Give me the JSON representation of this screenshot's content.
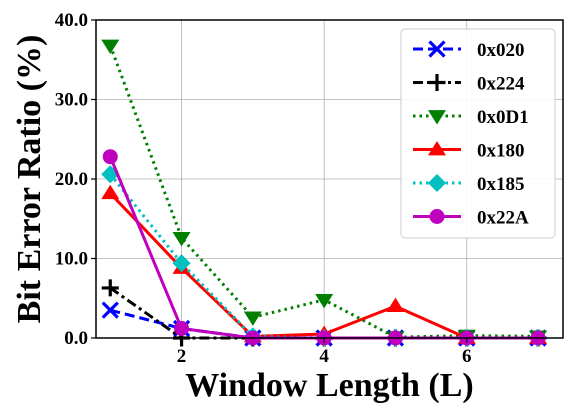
{
  "chart_data": {
    "type": "line",
    "xlabel": "Window Length (L)",
    "ylabel": "Bit Error Ratio (%)",
    "xlim": [
      0.8,
      7.35
    ],
    "ylim": [
      0,
      40
    ],
    "xticks": [
      2,
      4,
      6
    ],
    "xtick_labels": [
      "2",
      "4",
      "6"
    ],
    "yticks": [
      0,
      10,
      20,
      30,
      40
    ],
    "ytick_labels": [
      "0.0",
      "10.0",
      "20.0",
      "30.0",
      "40.0"
    ],
    "grid": true,
    "legend_position": "top-right",
    "series": [
      {
        "name": "0x020",
        "color": "#0000ff",
        "marker": "x",
        "linestyle": "dashed",
        "x": [
          1,
          2,
          3,
          4,
          5,
          6,
          7
        ],
        "y": [
          3.5,
          1.2,
          0.0,
          0.0,
          0.0,
          0.0,
          0.0
        ]
      },
      {
        "name": "0x224",
        "color": "#000000",
        "marker": "plus",
        "linestyle": "dashdot",
        "x": [
          1,
          2,
          3,
          4,
          5,
          6,
          7
        ],
        "y": [
          6.3,
          0.0,
          0.0,
          0.0,
          0.0,
          0.0,
          0.0
        ]
      },
      {
        "name": "0x0D1",
        "color": "#007f00",
        "marker": "triangle-down",
        "linestyle": "dotted",
        "x": [
          1,
          2,
          3,
          4,
          5,
          6,
          7
        ],
        "y": [
          36.8,
          12.6,
          2.6,
          4.8,
          0.1,
          0.3,
          0.2
        ]
      },
      {
        "name": "0x180",
        "color": "#ff0000",
        "marker": "triangle-up",
        "linestyle": "solid",
        "x": [
          1,
          2,
          3,
          4,
          5,
          6,
          7
        ],
        "y": [
          18.2,
          8.8,
          0.2,
          0.5,
          4.0,
          0.0,
          0.0
        ]
      },
      {
        "name": "0x185",
        "color": "#00c0c0",
        "marker": "diamond",
        "linestyle": "dotted",
        "x": [
          1,
          2,
          3,
          4,
          5,
          6,
          7
        ],
        "y": [
          20.6,
          9.4,
          0.2,
          0.0,
          0.0,
          0.0,
          0.0
        ]
      },
      {
        "name": "0x22A",
        "color": "#bf00bf",
        "marker": "circle",
        "linestyle": "solid",
        "x": [
          1,
          2,
          3,
          4,
          5,
          6,
          7
        ],
        "y": [
          22.8,
          1.2,
          0.0,
          0.0,
          0.0,
          0.0,
          0.0
        ]
      }
    ]
  }
}
